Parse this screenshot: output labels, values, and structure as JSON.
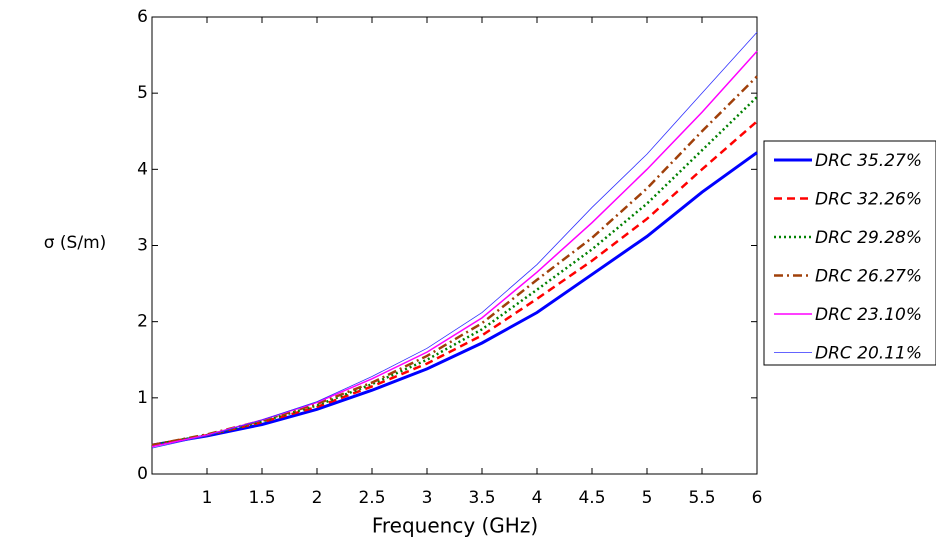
{
  "chart_data": {
    "type": "line",
    "xlabel": "Frequency (GHz)",
    "ylabel": "σ (S/m)",
    "xlim": [
      0.5,
      6
    ],
    "ylim": [
      0,
      6
    ],
    "xticks": [
      1,
      1.5,
      2,
      2.5,
      3,
      3.5,
      4,
      4.5,
      5,
      5.5,
      6
    ],
    "yticks": [
      0,
      1,
      2,
      3,
      4,
      5,
      6
    ],
    "x": [
      0.5,
      1,
      1.5,
      2,
      2.5,
      3,
      3.5,
      4,
      4.5,
      5,
      5.5,
      6
    ],
    "series": [
      {
        "name": "DRC 35.27%",
        "color": "#0000ff",
        "values": [
          0.38,
          0.5,
          0.65,
          0.85,
          1.1,
          1.38,
          1.72,
          2.12,
          2.62,
          3.12,
          3.7,
          4.22
        ]
      },
      {
        "name": "DRC 32.26%",
        "color": "#ff0000",
        "values": [
          0.38,
          0.51,
          0.68,
          0.88,
          1.15,
          1.45,
          1.82,
          2.3,
          2.8,
          3.35,
          4.0,
          4.63
        ]
      },
      {
        "name": "DRC 29.28%",
        "color": "#008000",
        "values": [
          0.38,
          0.51,
          0.69,
          0.9,
          1.18,
          1.5,
          1.9,
          2.42,
          2.95,
          3.55,
          4.25,
          4.95
        ]
      },
      {
        "name": "DRC 26.27%",
        "color": "#a0400a",
        "values": [
          0.38,
          0.52,
          0.7,
          0.92,
          1.2,
          1.55,
          1.98,
          2.55,
          3.1,
          3.75,
          4.5,
          5.22
        ]
      },
      {
        "name": "DRC 23.10%",
        "color": "#ff00ff",
        "values": [
          0.36,
          0.51,
          0.71,
          0.94,
          1.25,
          1.6,
          2.05,
          2.65,
          3.3,
          4.0,
          4.75,
          5.55
        ]
      },
      {
        "name": "DRC 20.11%",
        "color": "#3030ff",
        "values": [
          0.34,
          0.5,
          0.71,
          0.95,
          1.28,
          1.65,
          2.12,
          2.75,
          3.5,
          4.2,
          5.0,
          5.8
        ]
      }
    ]
  }
}
